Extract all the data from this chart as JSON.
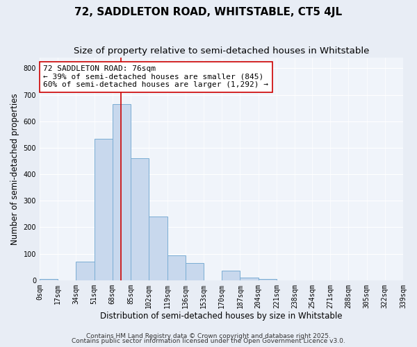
{
  "title": "72, SADDLETON ROAD, WHITSTABLE, CT5 4JL",
  "subtitle": "Size of property relative to semi-detached houses in Whitstable",
  "xlabel": "Distribution of semi-detached houses by size in Whitstable",
  "ylabel": "Number of semi-detached properties",
  "bar_edges": [
    0,
    17,
    34,
    51,
    68,
    85,
    102,
    119,
    136,
    153,
    170,
    187,
    204,
    221,
    238,
    254,
    271,
    288,
    305,
    322,
    339
  ],
  "bar_heights": [
    5,
    0,
    70,
    535,
    665,
    460,
    240,
    95,
    65,
    0,
    35,
    10,
    5,
    0,
    0,
    0,
    0,
    0,
    0,
    0
  ],
  "bar_facecolor": "#c8d8ed",
  "bar_edgecolor": "#7aadd4",
  "vline_x": 76,
  "vline_color": "#cc0000",
  "vline_lw": 1.2,
  "ylim": [
    0,
    840
  ],
  "yticks": [
    0,
    100,
    200,
    300,
    400,
    500,
    600,
    700,
    800
  ],
  "xtick_labels": [
    "0sqm",
    "17sqm",
    "34sqm",
    "51sqm",
    "68sqm",
    "85sqm",
    "102sqm",
    "119sqm",
    "136sqm",
    "153sqm",
    "170sqm",
    "187sqm",
    "204sqm",
    "221sqm",
    "238sqm",
    "254sqm",
    "271sqm",
    "288sqm",
    "305sqm",
    "322sqm",
    "339sqm"
  ],
  "annotation_line1": "72 SADDLETON ROAD: 76sqm",
  "annotation_line2": "← 39% of semi-detached houses are smaller (845)",
  "annotation_line3": "60% of semi-detached houses are larger (1,292) →",
  "bg_color": "#e8edf5",
  "plot_bg_color": "#f0f4fa",
  "footer_line1": "Contains HM Land Registry data © Crown copyright and database right 2025.",
  "footer_line2": "Contains public sector information licensed under the Open Government Licence v3.0.",
  "title_fontsize": 11,
  "subtitle_fontsize": 9.5,
  "axis_label_fontsize": 8.5,
  "tick_fontsize": 7,
  "annotation_fontsize": 8,
  "footer_fontsize": 6.5
}
